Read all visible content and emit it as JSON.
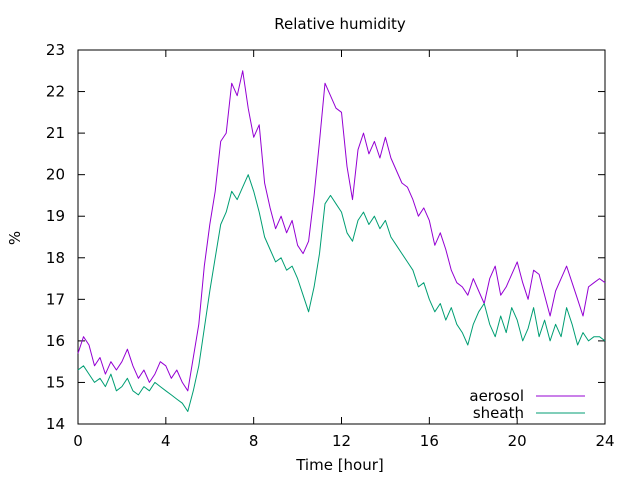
{
  "chart_data": {
    "type": "line",
    "title": "Relative humidity",
    "xlabel": "Time [hour]",
    "ylabel": "%",
    "xlim": [
      0,
      24
    ],
    "ylim": [
      14,
      23
    ],
    "xticks": [
      0,
      4,
      8,
      12,
      16,
      20,
      24
    ],
    "yticks": [
      14,
      15,
      16,
      17,
      18,
      19,
      20,
      21,
      22,
      23
    ],
    "grid": false,
    "legend_position": "bottom-right",
    "series": [
      {
        "name": "aerosol",
        "color": "#9400d3",
        "x": [
          0,
          0.25,
          0.5,
          0.75,
          1,
          1.25,
          1.5,
          1.75,
          2,
          2.25,
          2.5,
          2.75,
          3,
          3.25,
          3.5,
          3.75,
          4,
          4.25,
          4.5,
          4.75,
          5,
          5.25,
          5.5,
          5.75,
          6,
          6.25,
          6.5,
          6.75,
          7,
          7.25,
          7.5,
          7.75,
          8,
          8.25,
          8.5,
          8.75,
          9,
          9.25,
          9.5,
          9.75,
          10,
          10.25,
          10.5,
          10.75,
          11,
          11.25,
          11.5,
          11.75,
          12,
          12.25,
          12.5,
          12.75,
          13,
          13.25,
          13.5,
          13.75,
          14,
          14.25,
          14.5,
          14.75,
          15,
          15.25,
          15.5,
          15.75,
          16,
          16.25,
          16.5,
          16.75,
          17,
          17.25,
          17.5,
          17.75,
          18,
          18.25,
          18.5,
          18.75,
          19,
          19.25,
          19.5,
          19.75,
          20,
          20.25,
          20.5,
          20.75,
          21,
          21.25,
          21.5,
          21.75,
          22,
          22.25,
          22.5,
          22.75,
          23,
          23.25,
          23.5,
          23.75,
          24
        ],
        "y": [
          15.7,
          16.1,
          15.9,
          15.4,
          15.6,
          15.2,
          15.5,
          15.3,
          15.5,
          15.8,
          15.4,
          15.1,
          15.3,
          15.0,
          15.2,
          15.5,
          15.4,
          15.1,
          15.3,
          15.0,
          14.8,
          15.6,
          16.4,
          17.8,
          18.8,
          19.6,
          20.8,
          21.0,
          22.2,
          21.9,
          22.5,
          21.6,
          20.9,
          21.2,
          19.8,
          19.2,
          18.7,
          19.0,
          18.6,
          18.9,
          18.3,
          18.1,
          18.4,
          19.5,
          20.8,
          22.2,
          21.9,
          21.6,
          21.5,
          20.2,
          19.4,
          20.6,
          21.0,
          20.5,
          20.8,
          20.4,
          20.9,
          20.4,
          20.1,
          19.8,
          19.7,
          19.4,
          19.0,
          19.2,
          18.9,
          18.3,
          18.6,
          18.2,
          17.7,
          17.4,
          17.3,
          17.1,
          17.5,
          17.2,
          16.9,
          17.5,
          17.8,
          17.1,
          17.3,
          17.6,
          17.9,
          17.4,
          17.0,
          17.7,
          17.6,
          17.1,
          16.6,
          17.2,
          17.5,
          17.8,
          17.4,
          17.0,
          16.6,
          17.3,
          17.4,
          17.5,
          17.4
        ],
        "legend_label": "aerosol"
      },
      {
        "name": "sheath",
        "color": "#009e73",
        "x": [
          0,
          0.25,
          0.5,
          0.75,
          1,
          1.25,
          1.5,
          1.75,
          2,
          2.25,
          2.5,
          2.75,
          3,
          3.25,
          3.5,
          3.75,
          4,
          4.25,
          4.5,
          4.75,
          5,
          5.25,
          5.5,
          5.75,
          6,
          6.25,
          6.5,
          6.75,
          7,
          7.25,
          7.5,
          7.75,
          8,
          8.25,
          8.5,
          8.75,
          9,
          9.25,
          9.5,
          9.75,
          10,
          10.25,
          10.5,
          10.75,
          11,
          11.25,
          11.5,
          11.75,
          12,
          12.25,
          12.5,
          12.75,
          13,
          13.25,
          13.5,
          13.75,
          14,
          14.25,
          14.5,
          14.75,
          15,
          15.25,
          15.5,
          15.75,
          16,
          16.25,
          16.5,
          16.75,
          17,
          17.25,
          17.5,
          17.75,
          18,
          18.25,
          18.5,
          18.75,
          19,
          19.25,
          19.5,
          19.75,
          20,
          20.25,
          20.5,
          20.75,
          21,
          21.25,
          21.5,
          21.75,
          22,
          22.25,
          22.5,
          22.75,
          23,
          23.25,
          23.5,
          23.75,
          24
        ],
        "y": [
          15.3,
          15.4,
          15.2,
          15.0,
          15.1,
          14.9,
          15.2,
          14.8,
          14.9,
          15.1,
          14.8,
          14.7,
          14.9,
          14.8,
          15.0,
          14.9,
          14.8,
          14.7,
          14.6,
          14.5,
          14.3,
          14.8,
          15.4,
          16.3,
          17.2,
          18.0,
          18.8,
          19.1,
          19.6,
          19.4,
          19.7,
          20.0,
          19.6,
          19.1,
          18.5,
          18.2,
          17.9,
          18.0,
          17.7,
          17.8,
          17.5,
          17.1,
          16.7,
          17.3,
          18.1,
          19.3,
          19.5,
          19.3,
          19.1,
          18.6,
          18.4,
          18.9,
          19.1,
          18.8,
          19.0,
          18.7,
          18.9,
          18.5,
          18.3,
          18.1,
          17.9,
          17.7,
          17.3,
          17.4,
          17.0,
          16.7,
          16.9,
          16.5,
          16.8,
          16.4,
          16.2,
          15.9,
          16.4,
          16.7,
          16.9,
          16.4,
          16.1,
          16.6,
          16.2,
          16.8,
          16.5,
          16.0,
          16.3,
          16.8,
          16.1,
          16.5,
          16.0,
          16.4,
          16.1,
          16.8,
          16.4,
          15.9,
          16.2,
          16.0,
          16.1,
          16.1,
          16.0
        ],
        "legend_label": "sheath"
      }
    ]
  }
}
